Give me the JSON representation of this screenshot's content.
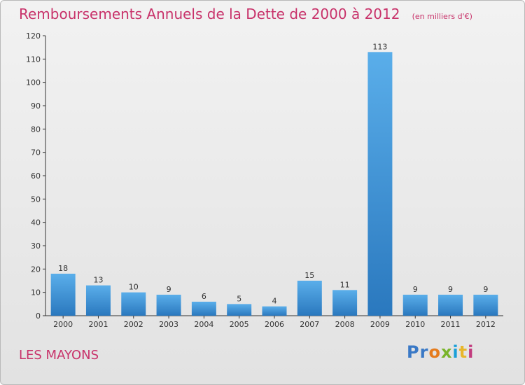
{
  "title": "Remboursements Annuels de la Dette de 2000 à 2012",
  "unit": "(en milliers d'€)",
  "commune": "LES MAYONS",
  "logo": [
    "Pr",
    "o",
    "x",
    "i",
    "t",
    "i"
  ],
  "colors": {
    "bar_light": "#5aaeea",
    "bar_dark": "#2a78be",
    "title": "#c8326a",
    "axis": "#333333"
  },
  "chart_data": {
    "type": "bar",
    "title": "Remboursements Annuels de la Dette de 2000 à 2012",
    "xlabel": "",
    "ylabel": "",
    "categories": [
      "2000",
      "2001",
      "2002",
      "2003",
      "2004",
      "2005",
      "2006",
      "2007",
      "2008",
      "2009",
      "2010",
      "2011",
      "2012"
    ],
    "values": [
      18,
      13,
      10,
      9,
      6,
      5,
      4,
      15,
      11,
      113,
      9,
      9,
      9
    ],
    "ylim": [
      0,
      120
    ],
    "yticks": [
      0,
      10,
      20,
      30,
      40,
      50,
      60,
      70,
      80,
      90,
      100,
      110,
      120
    ],
    "grid": false
  }
}
